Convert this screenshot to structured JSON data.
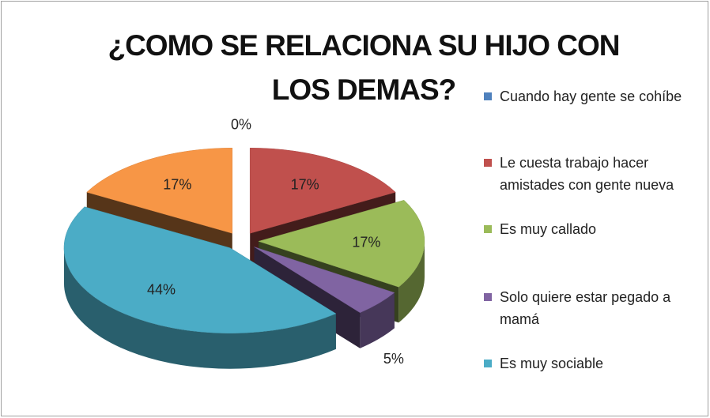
{
  "chart_data": {
    "type": "pie",
    "title": "¿COMO SE RELACIONA SU HIJO CON\nLOS DEMAS?",
    "categories": [
      "Cuando hay gente se cohíbe",
      "Le cuesta trabajo hacer amistades con gente nueva",
      "Es muy callado",
      "Solo quiere estar pegado a mamá",
      "Es muy sociable",
      null
    ],
    "values": [
      0,
      17,
      17,
      5,
      44,
      17
    ],
    "value_labels": [
      "0%",
      "17%",
      "17%",
      "5%",
      "44%",
      "17%"
    ],
    "colors": [
      "#4f81bd",
      "#c0504d",
      "#9bbb59",
      "#8064a2",
      "#4bacc6",
      "#f79646"
    ],
    "legend": "right"
  }
}
